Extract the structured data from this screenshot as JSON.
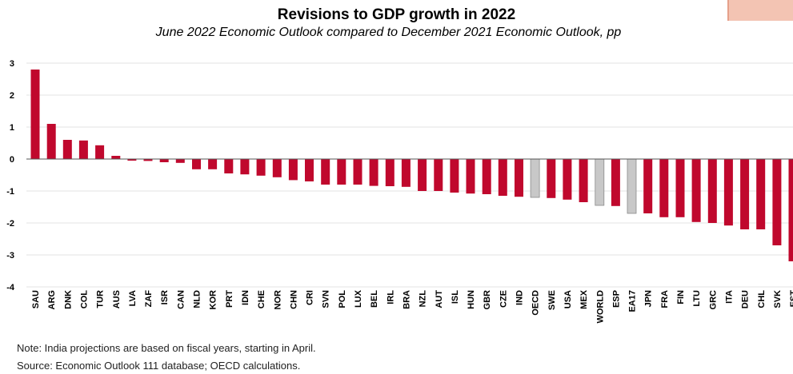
{
  "title": "Revisions to GDP growth in 2022",
  "subtitle": "June 2022 Economic Outlook compared to December 2021 Economic Outlook, pp",
  "notes": {
    "note": "Note:   India projections are based on fiscal years, starting in April.",
    "source": "Source:  Economic Outlook 111 database; OECD calculations."
  },
  "colors": {
    "country": "#c0082d",
    "aggregate": "#c8c8c8",
    "aggregate_stroke": "#8a8a8a",
    "grid": "#e3e3e3",
    "accent": "#f3c4b3"
  },
  "chart_data": {
    "type": "bar",
    "title": "Revisions to GDP growth in 2022",
    "subtitle": "June 2022 Economic Outlook compared to December 2021 Economic Outlook, pp",
    "xlabel": "",
    "ylabel": "",
    "ylim": [
      -4,
      3
    ],
    "yticks": [
      -4,
      -3,
      -2,
      -1,
      0,
      1,
      2,
      3
    ],
    "grid": true,
    "legend": "none",
    "categories": [
      "SAU",
      "ARG",
      "DNK",
      "COL",
      "TUR",
      "AUS",
      "LVA",
      "ZAF",
      "ISR",
      "CAN",
      "NLD",
      "KOR",
      "PRT",
      "IDN",
      "CHE",
      "NOR",
      "CHN",
      "CRI",
      "SVN",
      "POL",
      "LUX",
      "BEL",
      "IRL",
      "BRA",
      "NZL",
      "AUT",
      "ISL",
      "HUN",
      "GBR",
      "CZE",
      "IND",
      "OECD",
      "SWE",
      "USA",
      "MEX",
      "WORLD",
      "ESP",
      "EA17",
      "JPN",
      "FRA",
      "FIN",
      "LTU",
      "GRC",
      "ITA",
      "DEU",
      "CHL",
      "SVK",
      "EST"
    ],
    "values": [
      2.8,
      1.1,
      0.6,
      0.58,
      0.43,
      0.1,
      -0.05,
      -0.06,
      -0.1,
      -0.12,
      -0.32,
      -0.32,
      -0.45,
      -0.48,
      -0.52,
      -0.57,
      -0.66,
      -0.7,
      -0.8,
      -0.8,
      -0.8,
      -0.84,
      -0.85,
      -0.87,
      -1.0,
      -1.0,
      -1.05,
      -1.08,
      -1.1,
      -1.15,
      -1.18,
      -1.2,
      -1.22,
      -1.27,
      -1.35,
      -1.45,
      -1.47,
      -1.7,
      -1.7,
      -1.82,
      -1.82,
      -1.97,
      -2.0,
      -2.08,
      -2.2,
      -2.2,
      -2.7,
      -3.2
    ],
    "highlight": [
      "OECD",
      "WORLD",
      "EA17"
    ]
  }
}
